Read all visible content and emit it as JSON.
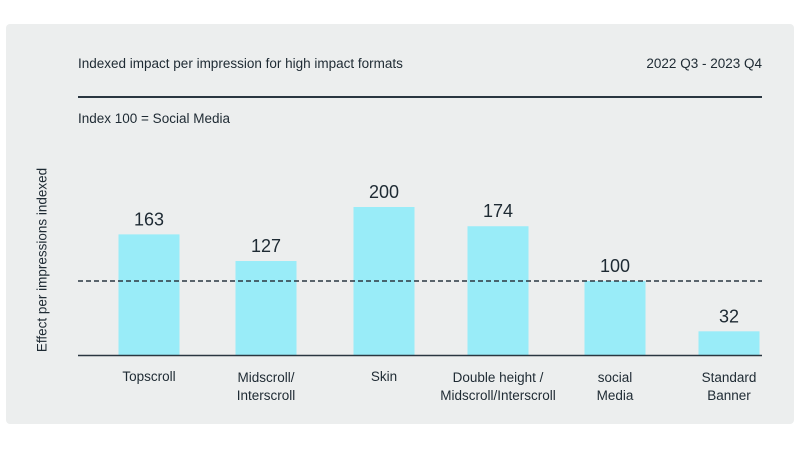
{
  "chart_data": {
    "type": "bar",
    "title": "Indexed impact per impression for high impact formats",
    "period": "2022 Q3 - 2023 Q4",
    "subtitle": "Index 100 = Social Media",
    "ylabel": "Effect per impressions indexed",
    "xlabel": "",
    "categories": [
      "Topscroll",
      "Midscroll/\nInterscroll",
      "Skin",
      "Double height /\nMidscroll/Interscroll",
      "social\nMedia",
      "Standard\nBanner"
    ],
    "values": [
      163,
      127,
      200,
      174,
      100,
      32
    ],
    "reference_line": 100,
    "ylim": [
      0,
      200
    ],
    "grid": false,
    "legend": "none",
    "colors": {
      "bar": "#99ecf8",
      "axis": "#2a3640",
      "reference": "#2a3640",
      "background": "#eceeee"
    }
  }
}
